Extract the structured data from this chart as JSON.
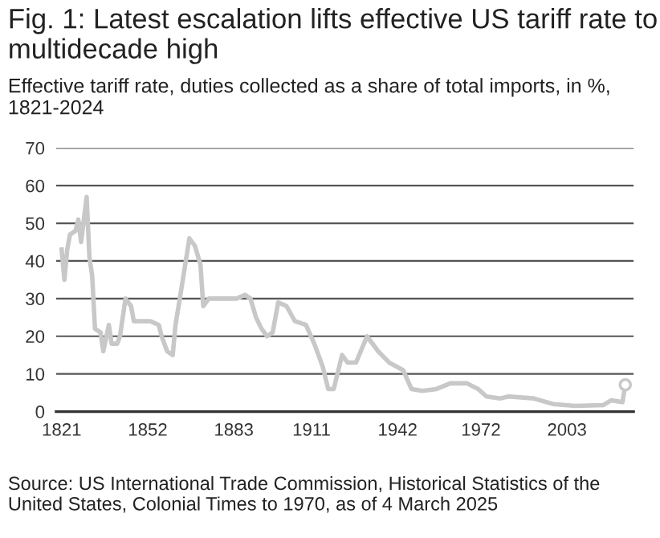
{
  "chart_data": {
    "type": "line",
    "title": "Fig. 1: Latest escalation lifts effective US tariff rate to multidecade high",
    "subtitle": "Effective tariff rate, duties collected as a share of total imports, in %, 1821-2024",
    "annotations": [
      "Source: US International Trade Commission, Historical Statistics of the United States, Colonial Times to 1970, as of 4 March 2025"
    ],
    "series": [
      {
        "color": "#c8c8c8",
        "x": [
          1821,
          1822,
          1823,
          1824,
          1826,
          1827,
          1828,
          1829,
          1830,
          1831,
          1832,
          1833,
          1835,
          1836,
          1838,
          1839,
          1841,
          1842,
          1844,
          1846,
          1847,
          1850,
          1853,
          1856,
          1857,
          1859,
          1861,
          1862,
          1864,
          1867,
          1869,
          1871,
          1872,
          1874,
          1876,
          1880,
          1884,
          1887,
          1889,
          1891,
          1893,
          1895,
          1897,
          1899,
          1902,
          1905,
          1909,
          1912,
          1915,
          1917,
          1919,
          1922,
          1924,
          1927,
          1931,
          1935,
          1939,
          1944,
          1947,
          1951,
          1956,
          1961,
          1967,
          1971,
          1974,
          1979,
          1982,
          1991,
          1998,
          2006,
          2016,
          2019,
          2023,
          2024
        ],
        "values": [
          43,
          35,
          43,
          47,
          48,
          51,
          45,
          51,
          57,
          41,
          36,
          22,
          21,
          16,
          23,
          18,
          18,
          20,
          30,
          28,
          24,
          24,
          24,
          23,
          20,
          16,
          15,
          23,
          32,
          46,
          44,
          39,
          28,
          30,
          30,
          30,
          30,
          31,
          30,
          25,
          22,
          20,
          21,
          29,
          28,
          24,
          23,
          18,
          12,
          6,
          6,
          15,
          13,
          13,
          20,
          16,
          13,
          11,
          6,
          5.5,
          6,
          7.5,
          7.5,
          6,
          4,
          3.5,
          4,
          3.5,
          2,
          1.5,
          1.7,
          3,
          2.5,
          7.1
        ]
      },
      {
        "type": "scatter",
        "color": "#c8c8c8",
        "marker": "circle",
        "x": [
          2024
        ],
        "values": [
          7.1
        ]
      }
    ],
    "xlim": [
      1819,
      2027
    ],
    "ylim": [
      0,
      70
    ],
    "xticks": [
      1821,
      1852,
      1883,
      1911,
      1942,
      1972,
      2003
    ],
    "yticks": [
      0,
      10,
      20,
      30,
      40,
      50,
      60,
      70
    ],
    "grid": "y",
    "line_style": "solid"
  }
}
